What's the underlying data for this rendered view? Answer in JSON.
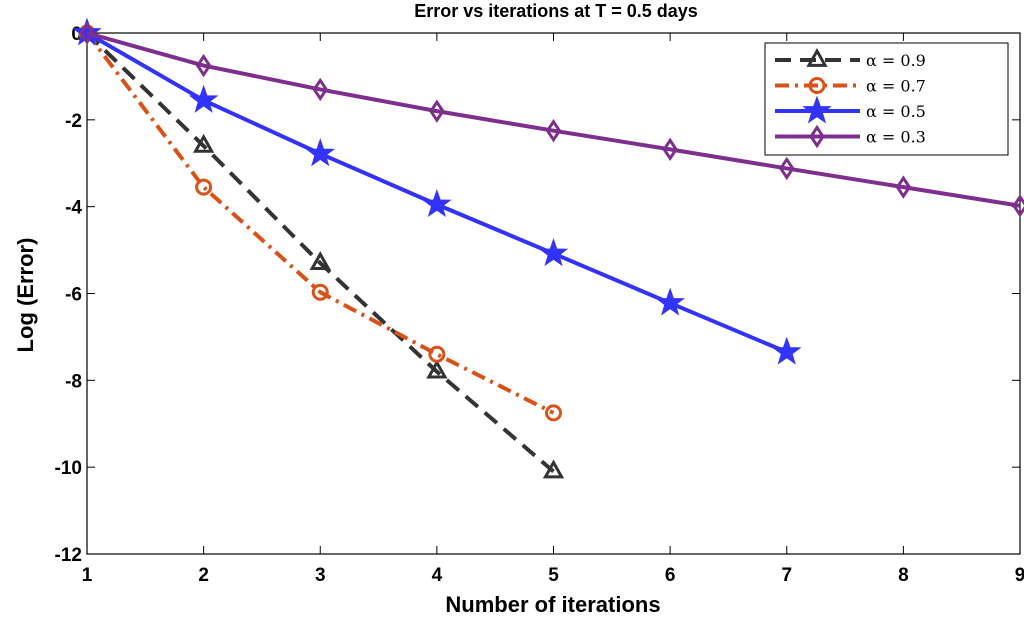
{
  "chart_data": {
    "type": "line",
    "title": "Error vs iterations at T = 0.5 days",
    "xlabel": "Number of iterations",
    "ylabel": "Log (Error)",
    "xlim": [
      1,
      9
    ],
    "ylim": [
      -12,
      0
    ],
    "xticks": [
      1,
      2,
      3,
      4,
      5,
      6,
      7,
      8,
      9
    ],
    "yticks": [
      0,
      -2,
      -4,
      -6,
      -8,
      -10,
      -12
    ],
    "grid": false,
    "legend_position": "top-right",
    "series": [
      {
        "name": "α = 0.9",
        "color": "#333333",
        "dash": "dashed",
        "marker": "triangle",
        "x": [
          1,
          2,
          3,
          4,
          5
        ],
        "y": [
          0,
          -2.6,
          -5.3,
          -7.8,
          -10.1
        ]
      },
      {
        "name": "α = 0.7",
        "color": "#D95319",
        "dash": "dashdot",
        "marker": "circle",
        "x": [
          1,
          2,
          3,
          4,
          5
        ],
        "y": [
          0,
          -3.55,
          -5.97,
          -7.4,
          -8.75
        ]
      },
      {
        "name": "α = 0.5",
        "color": "#3333FF",
        "dash": "solid",
        "marker": "star",
        "x": [
          1,
          2,
          3,
          4,
          5,
          6,
          7
        ],
        "y": [
          0,
          -1.55,
          -2.78,
          -3.95,
          -5.08,
          -6.22,
          -7.35
        ]
      },
      {
        "name": "α = 0.3",
        "color": "#7E2F8E",
        "dash": "solid",
        "marker": "diamond",
        "x": [
          1,
          2,
          3,
          4,
          5,
          6,
          7,
          8,
          9
        ],
        "y": [
          0,
          -0.75,
          -1.3,
          -1.8,
          -2.25,
          -2.68,
          -3.12,
          -3.55,
          -3.98
        ]
      }
    ]
  }
}
